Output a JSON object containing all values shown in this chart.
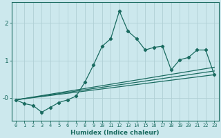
{
  "xlabel": "Humidex (Indice chaleur)",
  "background_color": "#cce8ed",
  "grid_color": "#b0cfd5",
  "line_color": "#1a6b60",
  "xlim": [
    -0.5,
    23.5
  ],
  "ylim": [
    -0.6,
    2.55
  ],
  "yticks": [
    0,
    1,
    2
  ],
  "ytick_labels": [
    "-0",
    "1",
    "2"
  ],
  "xticks": [
    0,
    1,
    2,
    3,
    4,
    5,
    6,
    7,
    8,
    9,
    10,
    11,
    12,
    13,
    14,
    15,
    16,
    17,
    18,
    19,
    20,
    21,
    22,
    23
  ],
  "main_series_x": [
    0,
    1,
    2,
    3,
    4,
    5,
    6,
    7,
    8,
    9,
    10,
    11,
    12,
    13,
    14,
    15,
    16,
    17,
    18,
    19,
    20,
    21,
    22,
    23
  ],
  "main_series_y": [
    -0.05,
    -0.15,
    -0.2,
    -0.38,
    -0.25,
    -0.12,
    -0.05,
    0.05,
    0.42,
    0.88,
    1.38,
    1.58,
    2.32,
    1.78,
    1.58,
    1.28,
    1.35,
    1.38,
    0.75,
    1.02,
    1.08,
    1.28,
    1.28,
    0.62
  ],
  "line1_x": [
    0,
    23
  ],
  "line1_y": [
    -0.05,
    0.62
  ],
  "line2_x": [
    0,
    23
  ],
  "line2_y": [
    -0.05,
    0.72
  ],
  "line3_x": [
    0,
    23
  ],
  "line3_y": [
    -0.05,
    0.82
  ]
}
